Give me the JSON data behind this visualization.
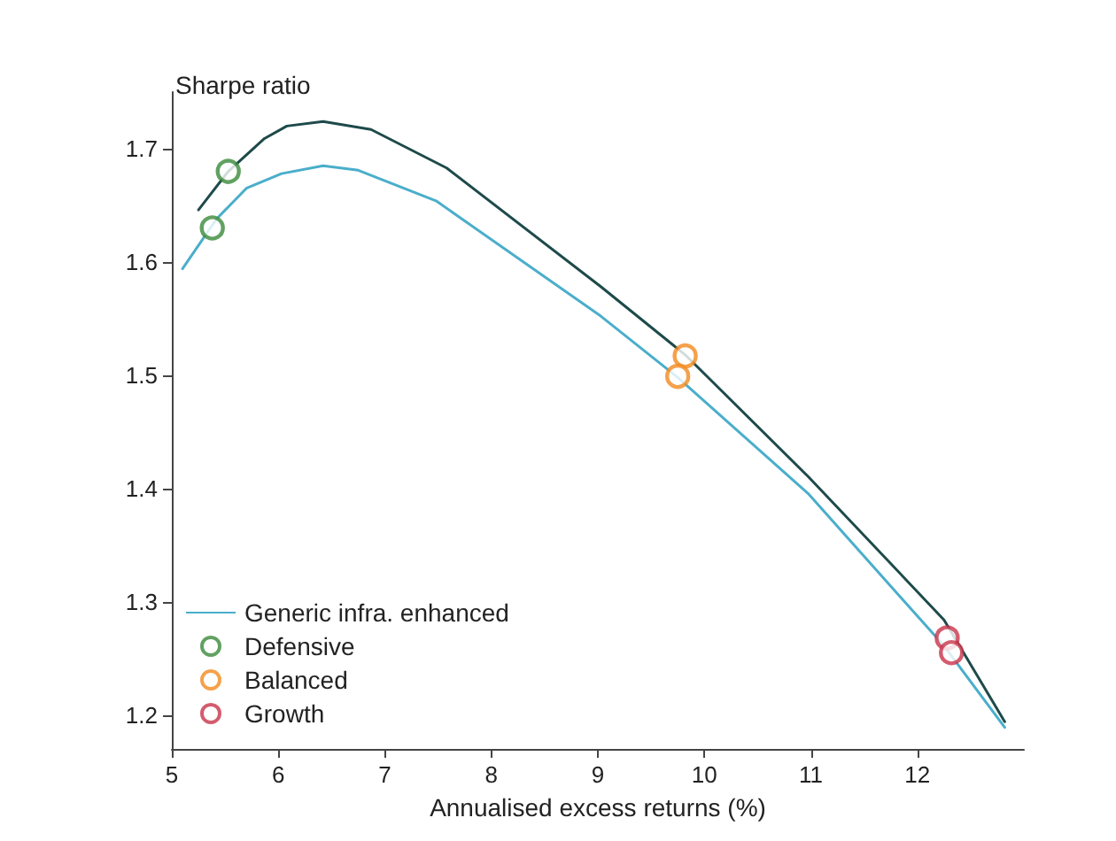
{
  "chart_data": {
    "type": "line",
    "xlabel": "Annualised excess returns (%)",
    "ylabel": "Sharpe ratio",
    "xlim": [
      5,
      13
    ],
    "xticks": [
      5,
      6,
      7,
      8,
      9,
      10,
      11,
      12
    ],
    "ylim": [
      1.17,
      1.75
    ],
    "yticks": [
      1.2,
      1.3,
      1.4,
      1.5,
      1.6,
      1.7
    ],
    "grid": false,
    "legend": "bottom left",
    "line_style": "solid",
    "series": [
      {
        "color": "#1e4a4a",
        "x": [
          5.25,
          5.53,
          5.87,
          6.08,
          6.42,
          6.87,
          7.58,
          9.03,
          9.82,
          10.98,
          12.25,
          12.82
        ],
        "values": [
          1.646,
          1.68,
          1.709,
          1.72,
          1.724,
          1.717,
          1.683,
          1.578,
          1.518,
          1.41,
          1.284,
          1.194
        ]
      },
      {
        "name": "Generic infra. enhanced",
        "color": "#4aaecb",
        "x": [
          5.1,
          5.42,
          5.7,
          6.03,
          6.42,
          6.75,
          7.48,
          9.03,
          9.75,
          10.98,
          12.25,
          12.82
        ],
        "values": [
          1.594,
          1.638,
          1.665,
          1.678,
          1.685,
          1.681,
          1.654,
          1.552,
          1.498,
          1.395,
          1.261,
          1.189
        ]
      },
      {
        "type": "scatter",
        "marker": "circle",
        "name": "Defensive",
        "color": "#3a8a3a",
        "x": [
          5.53,
          5.38
        ],
        "values": [
          1.68,
          1.63
        ]
      },
      {
        "type": "scatter",
        "marker": "circle",
        "name": "Balanced",
        "color": "#f28a1e",
        "x": [
          9.82,
          9.75
        ],
        "values": [
          1.517,
          1.499
        ]
      },
      {
        "type": "scatter",
        "marker": "circle",
        "name": "Growth",
        "color": "#c8334a",
        "x": [
          12.28,
          12.32
        ],
        "values": [
          1.268,
          1.255
        ]
      }
    ]
  }
}
